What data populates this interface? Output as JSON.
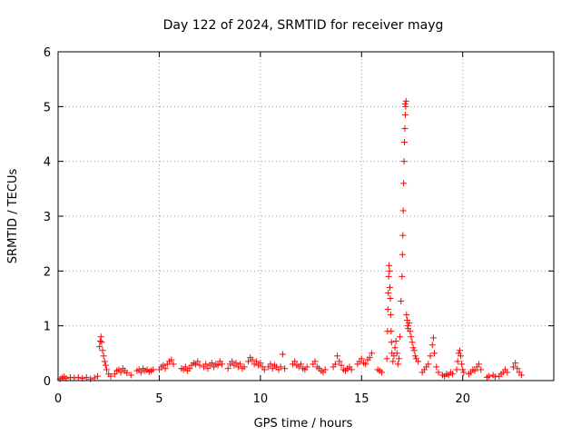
{
  "colors": {
    "marker": "#ff0000",
    "grid": "#a0a0a0",
    "frame": "#000000"
  },
  "chart_data": {
    "type": "scatter",
    "title": "Day 122 of 2024, SRMTID for receiver mayg",
    "xlabel": "GPS time / hours",
    "ylabel": "SRMTID / TECUs",
    "xlim": [
      0,
      24.5
    ],
    "ylim": [
      0,
      6
    ],
    "xticks": [
      0,
      5,
      10,
      15,
      20
    ],
    "yticks": [
      0,
      1,
      2,
      3,
      4,
      5,
      6
    ],
    "grid": true,
    "marker": "+",
    "series": [
      {
        "name": "SRMTID",
        "points": [
          [
            0.1,
            0.03
          ],
          [
            0.2,
            0.05
          ],
          [
            0.3,
            0.07
          ],
          [
            0.4,
            0.04
          ],
          [
            0.6,
            0.06
          ],
          [
            0.8,
            0.05
          ],
          [
            1.0,
            0.06
          ],
          [
            1.2,
            0.04
          ],
          [
            1.4,
            0.06
          ],
          [
            1.6,
            0.03
          ],
          [
            1.8,
            0.05
          ],
          [
            1.95,
            0.08
          ],
          [
            2.05,
            0.62
          ],
          [
            2.08,
            0.72
          ],
          [
            2.12,
            0.8
          ],
          [
            2.15,
            0.7
          ],
          [
            2.2,
            0.55
          ],
          [
            2.25,
            0.45
          ],
          [
            2.3,
            0.35
          ],
          [
            2.35,
            0.28
          ],
          [
            2.4,
            0.2
          ],
          [
            2.5,
            0.12
          ],
          [
            2.6,
            0.08
          ],
          [
            2.8,
            0.12
          ],
          [
            2.9,
            0.18
          ],
          [
            3.0,
            0.2
          ],
          [
            3.1,
            0.15
          ],
          [
            3.2,
            0.22
          ],
          [
            3.3,
            0.18
          ],
          [
            3.4,
            0.14
          ],
          [
            3.6,
            0.1
          ],
          [
            3.9,
            0.18
          ],
          [
            4.0,
            0.2
          ],
          [
            4.1,
            0.15
          ],
          [
            4.2,
            0.22
          ],
          [
            4.3,
            0.18
          ],
          [
            4.4,
            0.2
          ],
          [
            4.5,
            0.16
          ],
          [
            4.6,
            0.18
          ],
          [
            4.7,
            0.2
          ],
          [
            5.0,
            0.2
          ],
          [
            5.1,
            0.25
          ],
          [
            5.2,
            0.28
          ],
          [
            5.3,
            0.22
          ],
          [
            5.4,
            0.3
          ],
          [
            5.5,
            0.35
          ],
          [
            5.6,
            0.38
          ],
          [
            5.7,
            0.3
          ],
          [
            6.1,
            0.22
          ],
          [
            6.2,
            0.2
          ],
          [
            6.3,
            0.25
          ],
          [
            6.4,
            0.18
          ],
          [
            6.5,
            0.22
          ],
          [
            6.6,
            0.28
          ],
          [
            6.7,
            0.32
          ],
          [
            6.8,
            0.3
          ],
          [
            6.9,
            0.35
          ],
          [
            7.0,
            0.28
          ],
          [
            7.2,
            0.25
          ],
          [
            7.3,
            0.3
          ],
          [
            7.4,
            0.22
          ],
          [
            7.5,
            0.28
          ],
          [
            7.6,
            0.32
          ],
          [
            7.7,
            0.25
          ],
          [
            7.8,
            0.3
          ],
          [
            7.9,
            0.28
          ],
          [
            8.0,
            0.35
          ],
          [
            8.1,
            0.3
          ],
          [
            8.4,
            0.22
          ],
          [
            8.5,
            0.3
          ],
          [
            8.6,
            0.35
          ],
          [
            8.7,
            0.28
          ],
          [
            8.8,
            0.32
          ],
          [
            8.9,
            0.25
          ],
          [
            9.0,
            0.3
          ],
          [
            9.1,
            0.22
          ],
          [
            9.2,
            0.25
          ],
          [
            9.4,
            0.35
          ],
          [
            9.5,
            0.42
          ],
          [
            9.6,
            0.38
          ],
          [
            9.7,
            0.3
          ],
          [
            9.8,
            0.35
          ],
          [
            9.9,
            0.28
          ],
          [
            10.0,
            0.32
          ],
          [
            10.1,
            0.25
          ],
          [
            10.2,
            0.2
          ],
          [
            10.4,
            0.25
          ],
          [
            10.5,
            0.3
          ],
          [
            10.6,
            0.22
          ],
          [
            10.7,
            0.28
          ],
          [
            10.8,
            0.25
          ],
          [
            10.9,
            0.2
          ],
          [
            11.0,
            0.25
          ],
          [
            11.1,
            0.48
          ],
          [
            11.2,
            0.22
          ],
          [
            11.6,
            0.3
          ],
          [
            11.7,
            0.35
          ],
          [
            11.8,
            0.28
          ],
          [
            11.9,
            0.25
          ],
          [
            12.0,
            0.3
          ],
          [
            12.1,
            0.22
          ],
          [
            12.2,
            0.2
          ],
          [
            12.3,
            0.25
          ],
          [
            12.6,
            0.3
          ],
          [
            12.7,
            0.35
          ],
          [
            12.8,
            0.25
          ],
          [
            12.9,
            0.22
          ],
          [
            13.0,
            0.18
          ],
          [
            13.1,
            0.15
          ],
          [
            13.2,
            0.2
          ],
          [
            13.6,
            0.25
          ],
          [
            13.7,
            0.3
          ],
          [
            13.8,
            0.45
          ],
          [
            13.9,
            0.35
          ],
          [
            14.0,
            0.28
          ],
          [
            14.1,
            0.2
          ],
          [
            14.2,
            0.18
          ],
          [
            14.3,
            0.22
          ],
          [
            14.4,
            0.25
          ],
          [
            14.5,
            0.2
          ],
          [
            14.8,
            0.3
          ],
          [
            14.9,
            0.35
          ],
          [
            15.0,
            0.4
          ],
          [
            15.1,
            0.32
          ],
          [
            15.2,
            0.3
          ],
          [
            15.3,
            0.38
          ],
          [
            15.4,
            0.42
          ],
          [
            15.5,
            0.5
          ],
          [
            15.8,
            0.2
          ],
          [
            15.9,
            0.18
          ],
          [
            16.0,
            0.15
          ],
          [
            16.25,
            0.4
          ],
          [
            16.28,
            0.9
          ],
          [
            16.3,
            1.3
          ],
          [
            16.32,
            1.6
          ],
          [
            16.34,
            1.9
          ],
          [
            16.36,
            2.1
          ],
          [
            16.38,
            2.0
          ],
          [
            16.4,
            1.7
          ],
          [
            16.42,
            1.5
          ],
          [
            16.44,
            1.2
          ],
          [
            16.46,
            0.9
          ],
          [
            16.48,
            0.7
          ],
          [
            16.5,
            0.5
          ],
          [
            16.55,
            0.35
          ],
          [
            16.6,
            0.45
          ],
          [
            16.65,
            0.6
          ],
          [
            16.7,
            0.72
          ],
          [
            16.75,
            0.5
          ],
          [
            16.8,
            0.3
          ],
          [
            16.85,
            0.4
          ],
          [
            16.9,
            0.8
          ],
          [
            16.95,
            1.45
          ],
          [
            17.0,
            1.9
          ],
          [
            17.02,
            2.3
          ],
          [
            17.04,
            2.65
          ],
          [
            17.06,
            3.1
          ],
          [
            17.08,
            3.6
          ],
          [
            17.1,
            4.0
          ],
          [
            17.12,
            4.35
          ],
          [
            17.14,
            4.6
          ],
          [
            17.16,
            4.85
          ],
          [
            17.18,
            5.0
          ],
          [
            17.2,
            5.1
          ],
          [
            17.15,
            5.05
          ],
          [
            17.22,
            1.2
          ],
          [
            17.25,
            1.1
          ],
          [
            17.28,
            1.0
          ],
          [
            17.3,
            0.95
          ],
          [
            17.35,
            1.05
          ],
          [
            17.4,
            0.9
          ],
          [
            17.45,
            0.8
          ],
          [
            17.5,
            0.7
          ],
          [
            17.55,
            0.6
          ],
          [
            17.6,
            0.55
          ],
          [
            17.65,
            0.45
          ],
          [
            17.7,
            0.4
          ],
          [
            17.8,
            0.35
          ],
          [
            18.0,
            0.15
          ],
          [
            18.1,
            0.2
          ],
          [
            18.2,
            0.25
          ],
          [
            18.3,
            0.3
          ],
          [
            18.4,
            0.45
          ],
          [
            18.5,
            0.65
          ],
          [
            18.55,
            0.78
          ],
          [
            18.6,
            0.5
          ],
          [
            18.7,
            0.25
          ],
          [
            18.8,
            0.15
          ],
          [
            19.0,
            0.1
          ],
          [
            19.1,
            0.08
          ],
          [
            19.2,
            0.12
          ],
          [
            19.3,
            0.1
          ],
          [
            19.4,
            0.15
          ],
          [
            19.5,
            0.12
          ],
          [
            19.7,
            0.2
          ],
          [
            19.75,
            0.35
          ],
          [
            19.8,
            0.5
          ],
          [
            19.85,
            0.55
          ],
          [
            19.9,
            0.45
          ],
          [
            19.95,
            0.3
          ],
          [
            20.0,
            0.2
          ],
          [
            20.05,
            0.15
          ],
          [
            20.3,
            0.12
          ],
          [
            20.4,
            0.15
          ],
          [
            20.5,
            0.2
          ],
          [
            20.6,
            0.18
          ],
          [
            20.7,
            0.25
          ],
          [
            20.8,
            0.3
          ],
          [
            20.9,
            0.2
          ],
          [
            21.2,
            0.06
          ],
          [
            21.3,
            0.08
          ],
          [
            21.5,
            0.1
          ],
          [
            21.6,
            0.07
          ],
          [
            21.8,
            0.08
          ],
          [
            21.9,
            0.12
          ],
          [
            22.0,
            0.15
          ],
          [
            22.1,
            0.2
          ],
          [
            22.2,
            0.15
          ],
          [
            22.5,
            0.25
          ],
          [
            22.6,
            0.32
          ],
          [
            22.7,
            0.22
          ],
          [
            22.8,
            0.15
          ],
          [
            22.9,
            0.1
          ]
        ]
      }
    ]
  }
}
